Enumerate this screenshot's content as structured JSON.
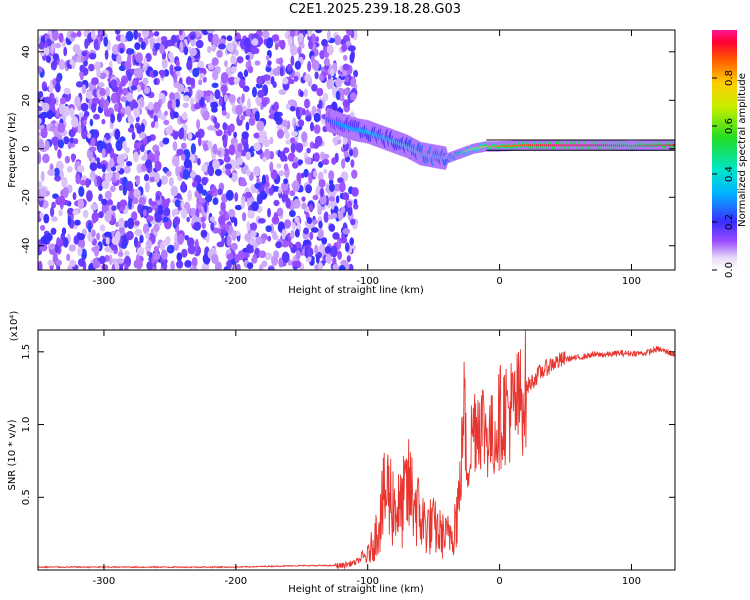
{
  "title": "C2E1.2025.239.18.28.G03",
  "chart_data": [
    {
      "type": "heatmap",
      "title": "C2E1.2025.239.18.28.G03",
      "xlabel": "Height of straight line (km)",
      "ylabel": "Frequency (Hz)",
      "xlim": [
        -350,
        133
      ],
      "ylim": [
        -50,
        49
      ],
      "xticks": [
        -300,
        -200,
        -100,
        0,
        100
      ],
      "yticks": [
        -40,
        -20,
        0,
        20,
        40
      ],
      "xtick_labels": [
        "-300",
        "-200",
        "-100",
        "0",
        "100"
      ],
      "ytick_labels": [
        "-40",
        "-20",
        "0",
        "20",
        "40"
      ],
      "noise_region_x": [
        -350,
        -115
      ],
      "signal_trace": {
        "x": [
          -130,
          -120,
          -110,
          -100,
          -90,
          -80,
          -70,
          -60,
          -50,
          -40,
          -30,
          -20,
          -10,
          0,
          20,
          40,
          60,
          80,
          100,
          133
        ],
        "y": [
          12,
          10,
          8,
          7,
          5,
          3,
          1,
          -2,
          -3,
          -4,
          -2,
          0,
          1,
          1,
          1.5,
          1.5,
          1.5,
          1.5,
          1.2,
          1.5
        ],
        "amplitude": [
          0.2,
          0.3,
          0.3,
          0.35,
          0.3,
          0.35,
          0.4,
          0.45,
          0.5,
          0.45,
          0.55,
          0.7,
          0.8,
          0.85,
          0.9,
          0.95,
          0.95,
          0.95,
          0.9,
          0.95
        ]
      },
      "colorbar": {
        "label": "Normalized spectral amplitude",
        "range": [
          0.0,
          1.0
        ],
        "ticks": [
          0.0,
          0.2,
          0.4,
          0.6,
          0.8
        ],
        "tick_labels": [
          "0.0",
          "0.2",
          "0.4",
          "0.6",
          "0.8"
        ]
      }
    },
    {
      "type": "line",
      "xlabel": "Height of straight line (km)",
      "ylabel": "SNR (10 * v/v)",
      "y_multiplier": "(x10⁴)",
      "xlim": [
        -350,
        133
      ],
      "ylim": [
        0,
        1.65
      ],
      "xticks": [
        -300,
        -200,
        -100,
        0,
        100
      ],
      "xtick_labels": [
        "-300",
        "-200",
        "-100",
        "0",
        "100"
      ],
      "yticks": [
        0.5,
        1.0,
        1.5
      ],
      "ytick_labels": [
        "0.5",
        "1.0",
        "1.5"
      ],
      "series": [
        {
          "name": "SNR",
          "color": "#e8352f",
          "x": [
            -350,
            -300,
            -250,
            -200,
            -150,
            -120,
            -110,
            -100,
            -95,
            -90,
            -85,
            -80,
            -75,
            -70,
            -65,
            -60,
            -55,
            -50,
            -45,
            -40,
            -35,
            -30,
            -27,
            -25,
            -22,
            -20,
            -15,
            -10,
            -5,
            0,
            5,
            10,
            15,
            20,
            30,
            40,
            50,
            60,
            70,
            80,
            90,
            100,
            110,
            120,
            133
          ],
          "y": [
            0.02,
            0.02,
            0.02,
            0.02,
            0.03,
            0.03,
            0.05,
            0.1,
            0.2,
            0.4,
            0.55,
            0.45,
            0.4,
            0.55,
            0.5,
            0.35,
            0.3,
            0.3,
            0.25,
            0.22,
            0.3,
            0.5,
            1.2,
            0.7,
            0.85,
            1.0,
            1.05,
            0.95,
            0.9,
            1.05,
            1.1,
            1.1,
            1.15,
            1.25,
            1.35,
            1.42,
            1.45,
            1.46,
            1.48,
            1.48,
            1.49,
            1.49,
            1.49,
            1.52,
            1.48
          ]
        }
      ]
    }
  ]
}
